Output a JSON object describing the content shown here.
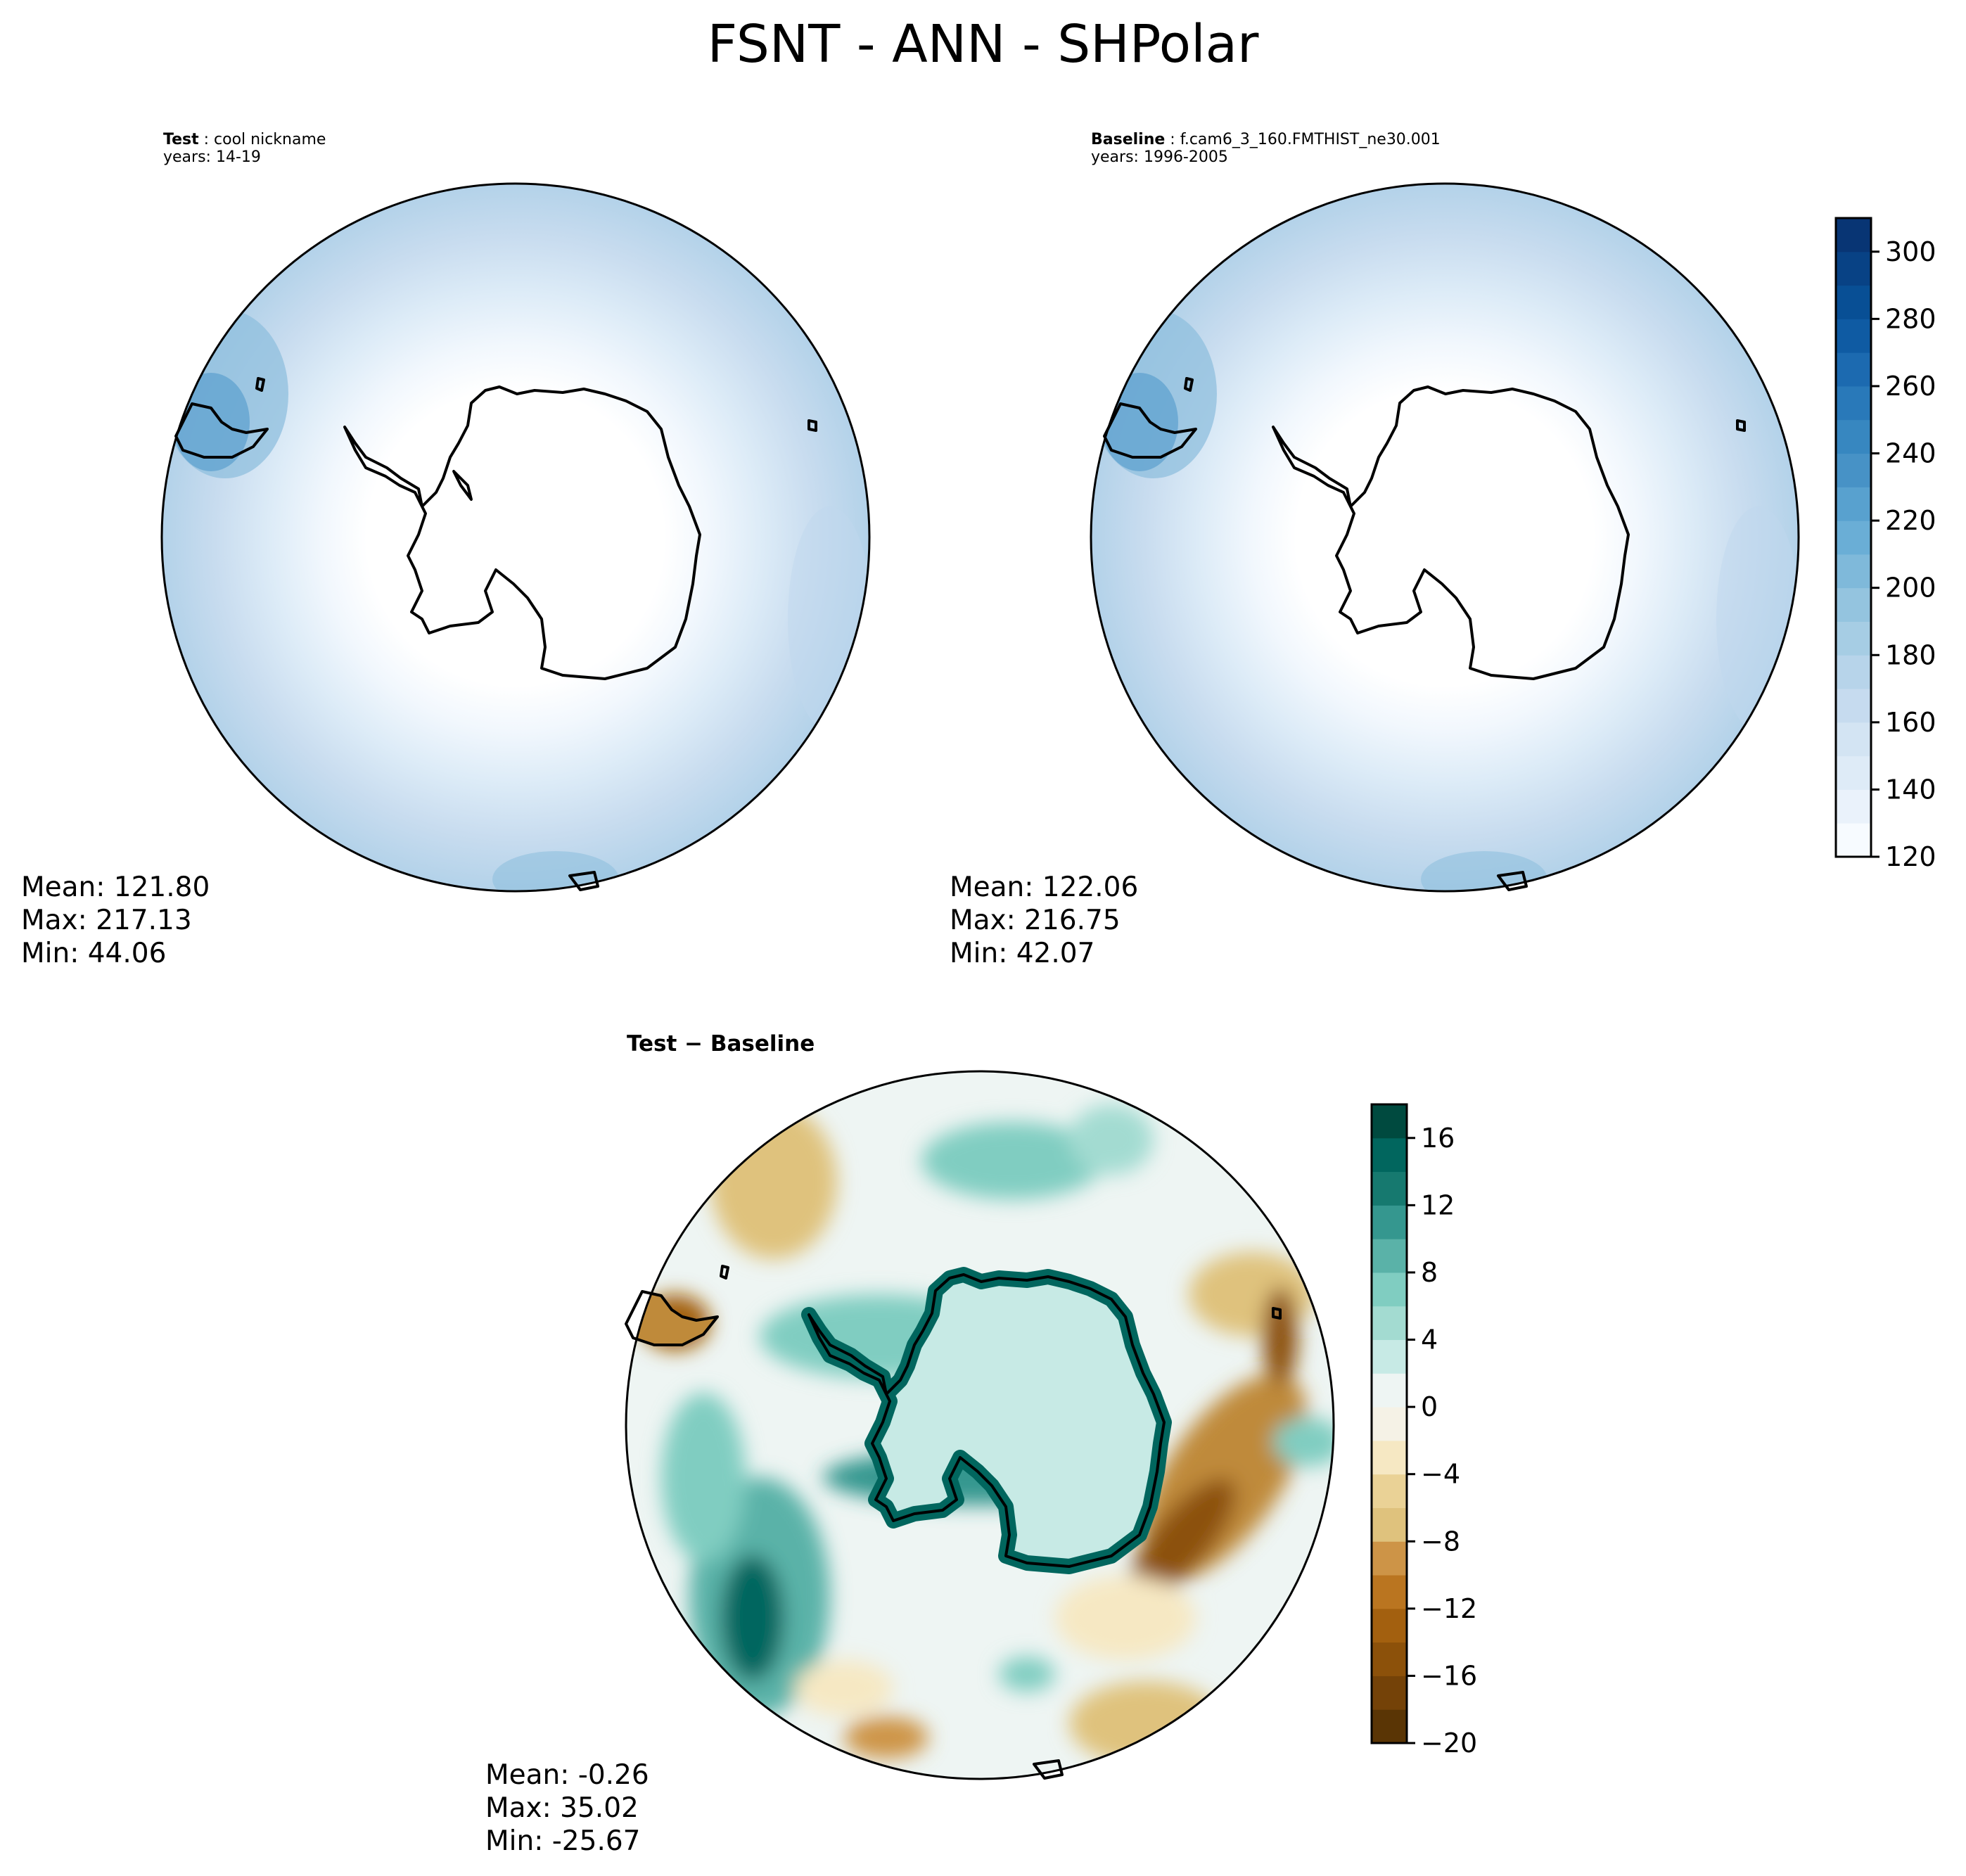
{
  "figure": {
    "title": "FSNT - ANN - SHPolar"
  },
  "panels": {
    "test": {
      "label": "Test",
      "name": "cool nickname",
      "years": "years: 14-19",
      "mean": "Mean: 121.80",
      "max": "Max: 217.13",
      "min": "Min: 44.06"
    },
    "baseline": {
      "label": "Baseline",
      "name": "f.cam6_3_160.FMTHIST_ne30.001",
      "years": "years: 1996-2005",
      "mean": "Mean: 122.06",
      "max": "Max: 216.75",
      "min": "Min: 42.07"
    },
    "diff": {
      "title": "Test − Baseline",
      "mean": "Mean: -0.26",
      "max": "Max: 35.02",
      "min": "Min: -25.67"
    }
  },
  "chart_data": [
    {
      "type": "heatmap",
      "projection": "south polar stereographic",
      "panel": "test",
      "colormap": "Blues",
      "stats": {
        "mean": 121.8,
        "max": 217.13,
        "min": 44.06
      }
    },
    {
      "type": "heatmap",
      "projection": "south polar stereographic",
      "panel": "baseline",
      "colormap": "Blues",
      "stats": {
        "mean": 122.06,
        "max": 216.75,
        "min": 42.07
      },
      "colorbar": {
        "range": [
          120,
          310
        ],
        "ticks": [
          120,
          140,
          160,
          180,
          200,
          220,
          240,
          260,
          280,
          300
        ],
        "tick_labels": [
          "120",
          "140",
          "160",
          "180",
          "200",
          "220",
          "240",
          "260",
          "280",
          "300"
        ],
        "levels": [
          120,
          130,
          140,
          150,
          160,
          170,
          180,
          190,
          200,
          210,
          220,
          230,
          240,
          250,
          260,
          270,
          280,
          290,
          300,
          310
        ],
        "colors": [
          "#f7fbff",
          "#eaf2fb",
          "#deebf7",
          "#d3e4f3",
          "#c6dbef",
          "#b7d4ea",
          "#a6cde4",
          "#94c4df",
          "#7fb9da",
          "#6aaed6",
          "#58a1cf",
          "#4792c6",
          "#3787c0",
          "#2979b9",
          "#1c6ab0",
          "#0f5ba3",
          "#084f95",
          "#084285",
          "#083574"
        ]
      },
      "features": [
        "antarctic coastline",
        "south america tip",
        "small islands"
      ]
    },
    {
      "type": "heatmap",
      "projection": "south polar stereographic",
      "panel": "difference",
      "colormap": "BrBG",
      "stats": {
        "mean": -0.26,
        "max": 35.02,
        "min": -25.67
      },
      "colorbar": {
        "range": [
          -20,
          18
        ],
        "ticks": [
          -20,
          -16,
          -12,
          -8,
          -4,
          0,
          4,
          8,
          12,
          16
        ],
        "tick_labels": [
          "−20",
          "−16",
          "−12",
          "−8",
          "−4",
          "0",
          "4",
          "8",
          "12",
          "16"
        ],
        "levels": [
          -20,
          -18,
          -16,
          -14,
          -12,
          -10,
          -8,
          -6,
          -4,
          -2,
          0,
          2,
          4,
          6,
          8,
          10,
          12,
          14,
          16,
          18
        ],
        "colors": [
          "#5a3505",
          "#744208",
          "#8c510a",
          "#a3600f",
          "#ba7520",
          "#cd9447",
          "#dfc27d",
          "#ead296",
          "#f6e8c3",
          "#f5f2e6",
          "#eef5f3",
          "#c7eae5",
          "#a3dbd1",
          "#80cdc1",
          "#5ab2a8",
          "#35978f",
          "#16796f",
          "#01665e",
          "#004a3f"
        ]
      },
      "notes": {
        "positive": "teal",
        "negative": "brown"
      }
    }
  ]
}
